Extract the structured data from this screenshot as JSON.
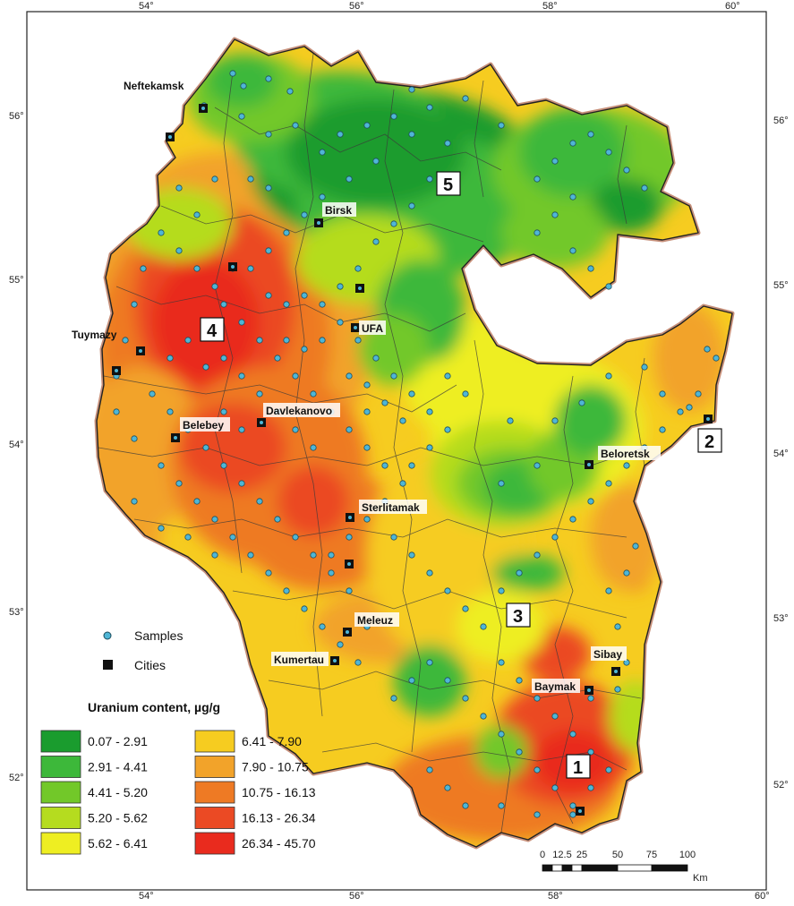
{
  "colors": {
    "c1": "#1a9c2e",
    "c2": "#3db83a",
    "c3": "#72c829",
    "c4": "#b5dc1f",
    "c5": "#eeee22",
    "c6": "#f6cc20",
    "c7": "#f2a32a",
    "c8": "#ee7a24",
    "c9": "#eb4a24",
    "c10": "#e92b1e",
    "sample": "#4fb6d6",
    "city": "#111111"
  },
  "graticule": {
    "top": [
      "54°",
      "56°",
      "58°",
      "60°"
    ],
    "bottom": [
      "54°",
      "56°",
      "58°",
      "60°"
    ],
    "left": [
      "56°",
      "55°",
      "54°",
      "53°",
      "52°"
    ],
    "right": [
      "56°",
      "55°",
      "54°",
      "53°",
      "52°"
    ]
  },
  "cities": [
    {
      "id": "neftekamsk",
      "label": "Neftekamsk"
    },
    {
      "id": "birsk",
      "label": "Birsk"
    },
    {
      "id": "tuymazy",
      "label": "Tuymazy"
    },
    {
      "id": "ufa",
      "label": "UFA"
    },
    {
      "id": "davlekanovo",
      "label": "Davlekanovo"
    },
    {
      "id": "belebey",
      "label": "Belebey"
    },
    {
      "id": "beloretsk",
      "label": "Beloretsk"
    },
    {
      "id": "sterlitamak",
      "label": "Sterlitamak"
    },
    {
      "id": "meleuz",
      "label": "Meleuz"
    },
    {
      "id": "kumertau",
      "label": "Kumertau"
    },
    {
      "id": "sibay",
      "label": "Sibay"
    },
    {
      "id": "baymak",
      "label": "Baymak"
    }
  ],
  "zones": [
    "1",
    "2",
    "3",
    "4",
    "5"
  ],
  "legend": {
    "samples_label": "Samples",
    "cities_label": "Cities",
    "title": "Uranium content, µg/g",
    "classes": [
      {
        "range": "0.07 - 2.91",
        "color_key": "c1"
      },
      {
        "range": "2.91 - 4.41",
        "color_key": "c2"
      },
      {
        "range": "4.41 - 5.20",
        "color_key": "c3"
      },
      {
        "range": "5.20 - 5.62",
        "color_key": "c4"
      },
      {
        "range": "5.62 - 6.41",
        "color_key": "c5"
      },
      {
        "range": "6.41 - 7.90",
        "color_key": "c6"
      },
      {
        "range": "7.90 - 10.75",
        "color_key": "c7"
      },
      {
        "range": "10.75 - 16.13",
        "color_key": "c8"
      },
      {
        "range": "16.13 - 26.34",
        "color_key": "c9"
      },
      {
        "range": "26.34 - 45.70",
        "color_key": "c10"
      }
    ]
  },
  "scale_bar": {
    "ticks": [
      "0",
      "12.5",
      "25",
      "50",
      "75",
      "100"
    ],
    "unit": "Km"
  }
}
